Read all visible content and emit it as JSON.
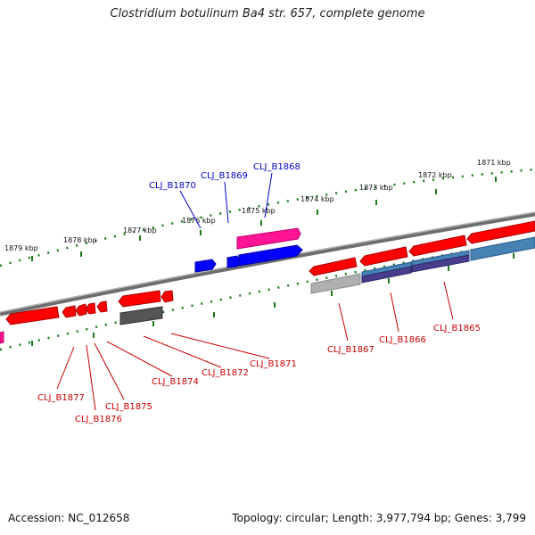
{
  "title": "Clostridium botulinum Ba4 str. 657, complete genome",
  "footer": {
    "accession": "Accession: NC_012658",
    "topology": "Topology: circular; Length: 3,977,794 bp; Genes: 3,799"
  },
  "colors": {
    "backbone": "#888888",
    "tick": "#1a7a1a",
    "forward_label": "#0000cc",
    "reverse_label": "#cc0000",
    "gene_red": "#ff0000",
    "gene_blue": "#0000ff",
    "gene_magenta": "#ff1493",
    "gene_steelblue": "#4682b4",
    "gene_purple": "#483d8b",
    "gene_gray": "#555555",
    "gene_lightgray": "#b0b0b0"
  },
  "ticks": [
    {
      "label": "1871 kbp"
    },
    {
      "label": "1872 kbp"
    },
    {
      "label": "1873 kbp"
    },
    {
      "label": "1874 kbp"
    },
    {
      "label": "1875 kbp"
    },
    {
      "label": "1876 kbp"
    },
    {
      "label": "1877 kbp"
    },
    {
      "label": "1878 kbp"
    },
    {
      "label": "1879 kbp"
    }
  ],
  "forward_labels": [
    {
      "label": "CLJ_B1870"
    },
    {
      "label": "CLJ_B1869"
    },
    {
      "label": "CLJ_B1868"
    }
  ],
  "reverse_labels": [
    {
      "label": "CLJ_B1867"
    },
    {
      "label": "CLJ_B1866"
    },
    {
      "label": "CLJ_B1865"
    },
    {
      "label": "CLJ_B1877"
    },
    {
      "label": "CLJ_B1876"
    },
    {
      "label": "CLJ_B1875"
    },
    {
      "label": "CLJ_B1874"
    },
    {
      "label": "CLJ_B1872"
    },
    {
      "label": "CLJ_B1871"
    }
  ]
}
